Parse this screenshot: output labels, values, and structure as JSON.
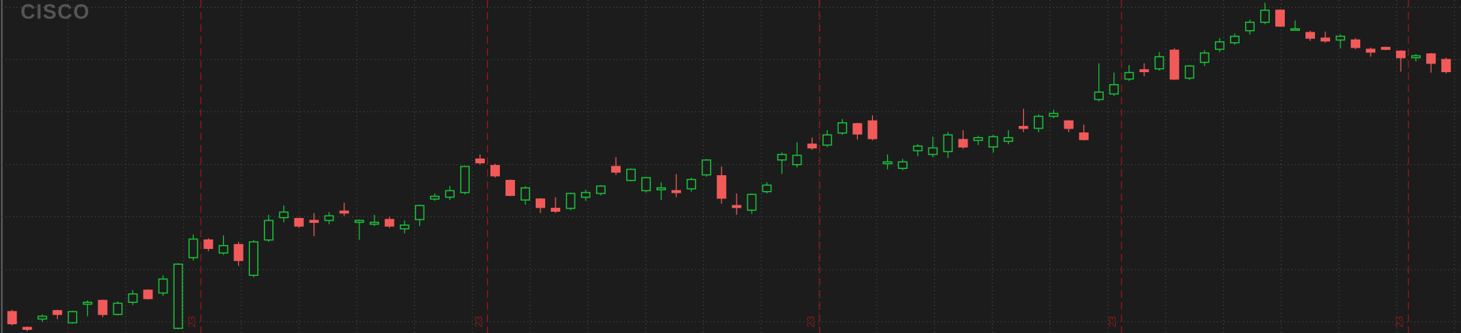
{
  "chart_data": {
    "type": "candlestick",
    "watermark": "CISCO",
    "up_color": "#19c23a",
    "down_color": "#f25a5a",
    "background": "#1c1c1c",
    "ylim": [
      0,
      358
    ],
    "ygrid": [
      12,
      68,
      125,
      181,
      238,
      294,
      350
    ],
    "period_breaks": [
      13,
      32,
      54,
      74,
      93
    ],
    "period_labels": [
      "23",
      "23",
      "23",
      "23",
      "23"
    ],
    "open": [
      23,
      6,
      15,
      24,
      11,
      31,
      35,
      20,
      33,
      46,
      43,
      5,
      81,
      100,
      86,
      95,
      62,
      100,
      124,
      123,
      121,
      121,
      131,
      119,
      117,
      122,
      112,
      122,
      144,
      146,
      151,
      187,
      180,
      164,
      143,
      144,
      134,
      134,
      146,
      150,
      179,
      164,
      153,
      154,
      153,
      155,
      170,
      169,
      137,
      132,
      152,
      186,
      181,
      203,
      202,
      215,
      225,
      228,
      182,
      177,
      196,
      192,
      195,
      208,
      207,
      200,
      206,
      222,
      220,
      233,
      228,
      215,
      251,
      257,
      273,
      283,
      284,
      304,
      274,
      291,
      305,
      312,
      325,
      334,
      347,
      326,
      323,
      317,
      315,
      315,
      305,
      307,
      303,
      296,
      300,
      294
    ],
    "high": [
      25,
      7,
      20,
      25,
      24,
      35,
      36,
      34,
      46,
      47,
      62,
      75,
      106,
      102,
      105,
      98,
      100,
      127,
      137,
      124,
      129,
      130,
      140,
      122,
      127,
      125,
      121,
      138,
      150,
      158,
      180,
      192,
      182,
      165,
      158,
      145,
      146,
      151,
      154,
      159,
      189,
      177,
      168,
      162,
      171,
      167,
      187,
      179,
      150,
      150,
      162,
      194,
      205,
      210,
      218,
      230,
      226,
      234,
      192,
      187,
      203,
      211,
      216,
      218,
      212,
      213,
      218,
      241,
      235,
      240,
      229,
      224,
      290,
      280,
      288,
      290,
      302,
      306,
      288,
      304,
      317,
      322,
      337,
      355,
      348,
      336,
      325,
      324,
      321,
      317,
      307,
      308,
      304,
      300,
      301,
      296
    ],
    "low": [
      8,
      2,
      12,
      15,
      10,
      18,
      17,
      19,
      30,
      36,
      40,
      4,
      78,
      88,
      84,
      72,
      60,
      98,
      119,
      113,
      104,
      117,
      126,
      100,
      115,
      113,
      107,
      115,
      142,
      143,
      149,
      181,
      167,
      147,
      138,
      129,
      129,
      132,
      142,
      148,
      170,
      163,
      151,
      143,
      146,
      152,
      168,
      139,
      127,
      128,
      150,
      171,
      178,
      197,
      200,
      213,
      208,
      207,
      176,
      175,
      190,
      189,
      188,
      198,
      202,
      194,
      203,
      216,
      216,
      231,
      216,
      207,
      249,
      255,
      271,
      276,
      282,
      272,
      272,
      287,
      302,
      310,
      321,
      332,
      329,
      325,
      314,
      312,
      306,
      305,
      297,
      304,
      281,
      292,
      280,
      279
    ],
    "close": [
      10,
      4,
      18,
      20,
      23,
      33,
      20,
      32,
      42,
      37,
      58,
      74,
      101,
      91,
      94,
      78,
      98,
      121,
      130,
      115,
      119,
      126,
      129,
      121,
      119,
      115,
      116,
      137,
      147,
      153,
      179,
      183,
      169,
      148,
      156,
      135,
      131,
      150,
      151,
      158,
      173,
      176,
      167,
      156,
      151,
      165,
      186,
      145,
      135,
      149,
      159,
      192,
      191,
      199,
      213,
      226,
      214,
      209,
      184,
      184,
      201,
      199,
      213,
      200,
      210,
      211,
      210,
      220,
      233,
      236,
      220,
      208,
      259,
      267,
      280,
      281,
      297,
      273,
      287,
      301,
      313,
      319,
      334,
      347,
      330,
      327,
      317,
      314,
      319,
      307,
      302,
      305,
      296,
      298,
      290,
      281
    ]
  }
}
